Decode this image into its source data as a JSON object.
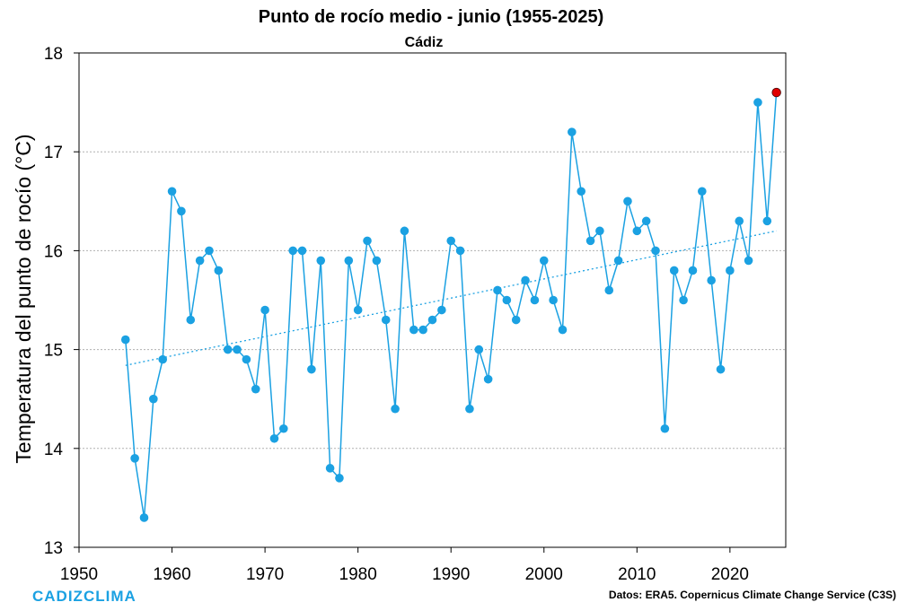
{
  "chart_data": {
    "type": "line",
    "title": "Punto de rocío medio - junio (1955-2025)",
    "subtitle": "Cádiz",
    "xlabel": "",
    "ylabel": "Temperatura del punto de rocío (°C)",
    "xlim": [
      1950,
      2026
    ],
    "ylim": [
      13,
      18
    ],
    "xticks": [
      1950,
      1960,
      1970,
      1980,
      1990,
      2000,
      2010,
      2020
    ],
    "yticks": [
      13,
      14,
      15,
      16,
      17,
      18
    ],
    "xtick_labels": [
      "1950",
      "1960",
      "1970",
      "1980",
      "1990",
      "2000",
      "2010",
      "2020"
    ],
    "ytick_labels": [
      "13",
      "14",
      "15",
      "16",
      "17",
      "18"
    ],
    "grid": "horizontal dotted",
    "series": [
      {
        "name": "Punto de rocío medio junio",
        "color": "#1ba1e2",
        "x": [
          1955,
          1956,
          1957,
          1958,
          1959,
          1960,
          1961,
          1962,
          1963,
          1964,
          1965,
          1966,
          1967,
          1968,
          1969,
          1970,
          1971,
          1972,
          1973,
          1974,
          1975,
          1976,
          1977,
          1978,
          1979,
          1980,
          1981,
          1982,
          1983,
          1984,
          1985,
          1986,
          1987,
          1988,
          1989,
          1990,
          1991,
          1992,
          1993,
          1994,
          1995,
          1996,
          1997,
          1998,
          1999,
          2000,
          2001,
          2002,
          2003,
          2004,
          2005,
          2006,
          2007,
          2008,
          2009,
          2010,
          2011,
          2012,
          2013,
          2014,
          2015,
          2016,
          2017,
          2018,
          2019,
          2020,
          2021,
          2022,
          2023,
          2024,
          2025
        ],
        "values": [
          15.1,
          13.9,
          13.3,
          14.5,
          14.9,
          16.6,
          16.4,
          15.3,
          15.9,
          16.0,
          15.8,
          15.0,
          15.0,
          14.9,
          14.6,
          15.4,
          14.1,
          14.2,
          16.0,
          16.0,
          14.8,
          15.9,
          13.8,
          13.7,
          15.9,
          15.4,
          16.1,
          15.9,
          15.3,
          14.4,
          16.2,
          15.2,
          15.2,
          15.3,
          15.4,
          16.1,
          16.0,
          14.4,
          15.0,
          14.7,
          15.6,
          15.5,
          15.3,
          15.7,
          15.5,
          15.9,
          15.5,
          15.2,
          17.2,
          16.6,
          16.1,
          16.2,
          15.6,
          15.9,
          16.5,
          16.2,
          16.3,
          16.0,
          14.2,
          15.8,
          15.5,
          15.8,
          16.6,
          15.7,
          14.8,
          15.8,
          16.3,
          15.9,
          17.5,
          16.3,
          17.6
        ]
      }
    ],
    "highlight": {
      "x": 2025,
      "value": 17.6,
      "color": "#e00000"
    },
    "trend": {
      "type": "linear",
      "x": [
        1955,
        2025
      ],
      "values": [
        14.84,
        16.2
      ],
      "color": "#1ba1e2"
    }
  },
  "branding": {
    "logo_text": "CADIZCLIMA",
    "color": "#1ba1e2"
  },
  "source": {
    "text": "Datos: ERA5. Copernicus Climate Change Service (C3S)"
  }
}
